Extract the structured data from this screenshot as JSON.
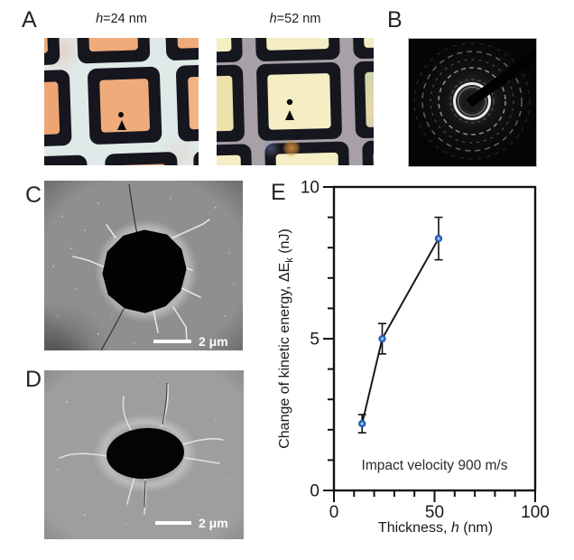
{
  "panels": {
    "a": {
      "label": "A",
      "images": [
        {
          "title_italic": "h",
          "title_rest": "=24 nm",
          "membrane_color": "#efab7a"
        },
        {
          "title_italic": "h",
          "title_rest": "=52 nm",
          "membrane_color": "#f5eec4"
        }
      ]
    },
    "b": {
      "label": "B",
      "description": "electron-diffraction-pattern"
    },
    "c": {
      "label": "C",
      "scale_bar_label": "2 μm"
    },
    "d": {
      "label": "D",
      "scale_bar_label": "2 μm"
    },
    "e": {
      "label": "E"
    }
  },
  "chart_data": {
    "type": "line",
    "x": [
      14,
      24,
      52
    ],
    "y": [
      2.2,
      5.0,
      8.3
    ],
    "y_err": [
      0.3,
      0.5,
      0.7
    ],
    "xlabel": "Thickness, h (nm)",
    "xlabel_parts": {
      "prefix": "Thickness, ",
      "italic": "h",
      "suffix": " (nm)"
    },
    "ylabel": "Change of kinetic energy, ΔEk (nJ)",
    "ylabel_parts": {
      "main": "Change of kinetic energy, ΔE",
      "sub": "k",
      "suffix": " (nJ)"
    },
    "annotation": "Impact velocity 900 m/s",
    "xlim": [
      0,
      100
    ],
    "ylim": [
      0,
      10
    ],
    "xticks": [
      0,
      50,
      100
    ],
    "yticks": [
      0,
      5,
      10
    ],
    "x_minor_step": 10,
    "y_minor_step": 1,
    "grid": false,
    "legend": false,
    "line_color": "#1a1a1a",
    "marker_stroke": "#1c55b0",
    "marker_fill": "#4a90d9"
  },
  "colors": {
    "membrane_24nm": "#efab7a",
    "membrane_24nm_left": "#eda673",
    "membrane_24nm_right": "#f2b286",
    "membrane_52nm": "#f5eec4",
    "membrane_52nm_left": "#ece2ac",
    "grid_dark": "#16161e",
    "bg_micrograph_24": "#dfe9e8",
    "bg_micrograph_52": "#a7a0a6",
    "sem_gray_c": "#8f8f8f",
    "sem_gray_d": "#9e9e9e"
  }
}
